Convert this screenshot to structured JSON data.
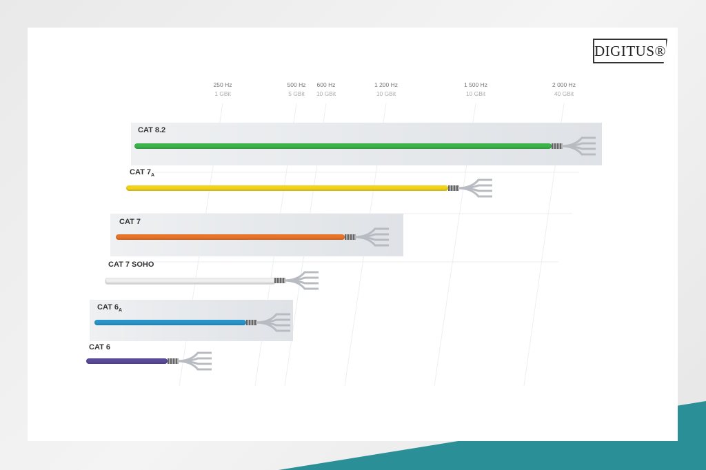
{
  "brand": {
    "logo": "DIGITUS®"
  },
  "columns": [
    {
      "freq": "250 Hz",
      "speed": "1 GBit"
    },
    {
      "freq": "500 Hz",
      "speed": "5 GBit"
    },
    {
      "freq": "600 Hz",
      "speed": "10 GBit"
    },
    {
      "freq": "1 200 Hz",
      "speed": "10 GBit"
    },
    {
      "freq": "1 500 Hz",
      "speed": "10 GBit"
    },
    {
      "freq": "2 000 Hz",
      "speed": "40 GBit"
    }
  ],
  "cables": [
    {
      "label": "CAT 8.2",
      "sub": "",
      "color": "#3cb44a"
    },
    {
      "label": "CAT 7",
      "sub": "A",
      "color": "#f2d21a"
    },
    {
      "label": "CAT 7",
      "sub": "",
      "color": "#e8742a"
    },
    {
      "label": "CAT 7 SOHO",
      "sub": "",
      "color": "#f0f0f0"
    },
    {
      "label": "CAT 6",
      "sub": "A",
      "color": "#2a94c8"
    },
    {
      "label": "CAT 6",
      "sub": "",
      "color": "#5a4a9a"
    }
  ],
  "accent": "#2b8f97"
}
